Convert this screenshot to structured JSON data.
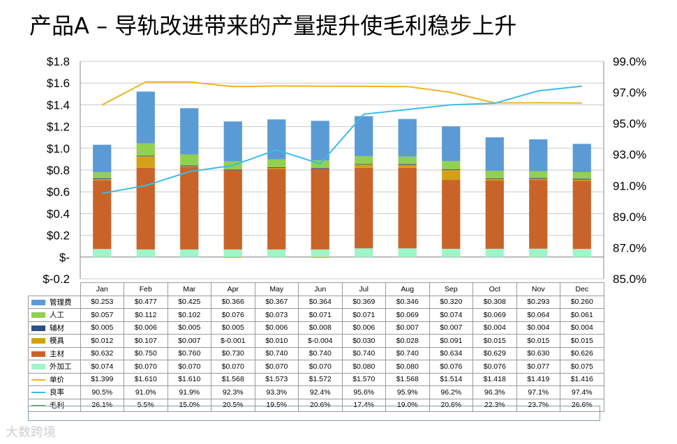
{
  "title": "产品A – 导轨改进带来的产量提升使毛利稳步上升",
  "watermark": "大数跨境",
  "chart_data": {
    "type": "bar",
    "stacked": true,
    "title": "产品A – 导轨改进带来的产量提升使毛利稳步上升",
    "categories": [
      "Jan",
      "Feb",
      "Mar",
      "Apr",
      "May",
      "Jun",
      "Jul",
      "Aug",
      "Sep",
      "Oct",
      "Nov",
      "Dec"
    ],
    "y_left": {
      "ylim": [
        -0.2,
        1.8
      ],
      "ticks": [
        -0.2,
        0,
        0.2,
        0.4,
        0.6,
        0.8,
        1.0,
        1.2,
        1.4,
        1.6,
        1.8
      ],
      "tick_labels": [
        "$-0.2",
        "$-",
        "$0.2",
        "$0.4",
        "$0.6",
        "$0.8",
        "$1.0",
        "$1.2",
        "$1.4",
        "$1.6",
        "$1.8"
      ]
    },
    "y_right": {
      "ylim": [
        85.0,
        99.0
      ],
      "ticks": [
        85,
        87,
        89,
        91,
        93,
        95,
        97,
        99
      ],
      "tick_labels": [
        "85.0%",
        "87.0%",
        "89.0%",
        "91.0%",
        "93.0%",
        "95.0%",
        "97.0%",
        "99.0%"
      ]
    },
    "series": [
      {
        "name": "管理费",
        "kind": "bar",
        "color": "#5b9bd5",
        "values": [
          0.253,
          0.477,
          0.425,
          0.366,
          0.367,
          0.364,
          0.369,
          0.346,
          0.32,
          0.308,
          0.293,
          0.26
        ],
        "labels": [
          "$0.253",
          "$0.477",
          "$0.425",
          "$0.366",
          "$0.367",
          "$0.364",
          "$0.369",
          "$0.346",
          "$0.320",
          "$0.308",
          "$0.293",
          "$0.260"
        ]
      },
      {
        "name": "人工",
        "kind": "bar",
        "color": "#92d050",
        "values": [
          0.057,
          0.112,
          0.102,
          0.076,
          0.073,
          0.071,
          0.071,
          0.069,
          0.074,
          0.069,
          0.064,
          0.061
        ],
        "labels": [
          "$0.057",
          "$0.112",
          "$0.102",
          "$0.076",
          "$0.073",
          "$0.071",
          "$0.071",
          "$0.069",
          "$0.074",
          "$0.069",
          "$0.064",
          "$0.061"
        ]
      },
      {
        "name": "辅材",
        "kind": "bar",
        "color": "#2e4f8a",
        "values": [
          0.005,
          0.006,
          0.005,
          0.005,
          0.006,
          0.008,
          0.006,
          0.007,
          0.007,
          0.004,
          0.004,
          0.004
        ],
        "labels": [
          "$0.005",
          "$0.006",
          "$0.005",
          "$0.005",
          "$0.006",
          "$0.008",
          "$0.006",
          "$0.007",
          "$0.007",
          "$0.004",
          "$0.004",
          "$0.004"
        ]
      },
      {
        "name": "模具",
        "kind": "bar",
        "color": "#d4a017",
        "values": [
          0.012,
          0.107,
          0.007,
          -0.001,
          0.01,
          -0.004,
          0.03,
          0.028,
          0.091,
          0.015,
          0.015,
          0.015
        ],
        "labels": [
          "$0.012",
          "$0.107",
          "$0.007",
          "$-0.001",
          "$0.010",
          "$-0.004",
          "$0.030",
          "$0.028",
          "$0.091",
          "$0.015",
          "$0.015",
          "$0.015"
        ]
      },
      {
        "name": "主材",
        "kind": "bar",
        "color": "#c8642a",
        "values": [
          0.632,
          0.75,
          0.76,
          0.73,
          0.74,
          0.74,
          0.74,
          0.74,
          0.634,
          0.629,
          0.63,
          0.626
        ],
        "labels": [
          "$0.632",
          "$0.750",
          "$0.760",
          "$0.730",
          "$0.740",
          "$0.740",
          "$0.740",
          "$0.740",
          "$0.634",
          "$0.629",
          "$0.630",
          "$0.626"
        ]
      },
      {
        "name": "外加工",
        "kind": "bar",
        "color": "#9ef5c8",
        "values": [
          0.074,
          0.07,
          0.07,
          0.07,
          0.07,
          0.07,
          0.08,
          0.08,
          0.076,
          0.076,
          0.077,
          0.075
        ],
        "labels": [
          "$0.074",
          "$0.070",
          "$0.070",
          "$0.070",
          "$0.070",
          "$0.070",
          "$0.080",
          "$0.080",
          "$0.076",
          "$0.076",
          "$0.077",
          "$0.075"
        ]
      },
      {
        "name": "单价",
        "kind": "line",
        "axis": "left",
        "color": "#f0b323",
        "values": [
          1.399,
          1.61,
          1.61,
          1.568,
          1.573,
          1.572,
          1.57,
          1.568,
          1.514,
          1.418,
          1.419,
          1.416
        ],
        "labels": [
          "$1.399",
          "$1.610",
          "$1.610",
          "$1.568",
          "$1.573",
          "$1.572",
          "$1.570",
          "$1.568",
          "$1.514",
          "$1.418",
          "$1.419",
          "$1.416"
        ]
      },
      {
        "name": "良率",
        "kind": "line",
        "axis": "right",
        "color": "#3bbce8",
        "values": [
          90.5,
          91.0,
          91.9,
          92.3,
          93.3,
          92.4,
          95.6,
          95.9,
          96.2,
          96.3,
          97.1,
          97.4
        ],
        "labels": [
          "90.5%",
          "91.0%",
          "91.9%",
          "92.3%",
          "93.3%",
          "92.4%",
          "95.6%",
          "95.9%",
          "96.2%",
          "96.3%",
          "97.1%",
          "97.4%"
        ]
      },
      {
        "name": "毛利",
        "kind": "line",
        "axis": "none",
        "color": "#5aa646",
        "values": [
          26.1,
          5.5,
          15.0,
          20.5,
          19.5,
          20.6,
          17.4,
          19.0,
          20.6,
          22.3,
          23.7,
          26.6
        ],
        "labels": [
          "26.1%",
          "5.5%",
          "15.0%",
          "20.5%",
          "19.5%",
          "20.6%",
          "17.4%",
          "19.0%",
          "20.6%",
          "22.3%",
          "23.7%",
          "26.6%"
        ]
      }
    ]
  }
}
